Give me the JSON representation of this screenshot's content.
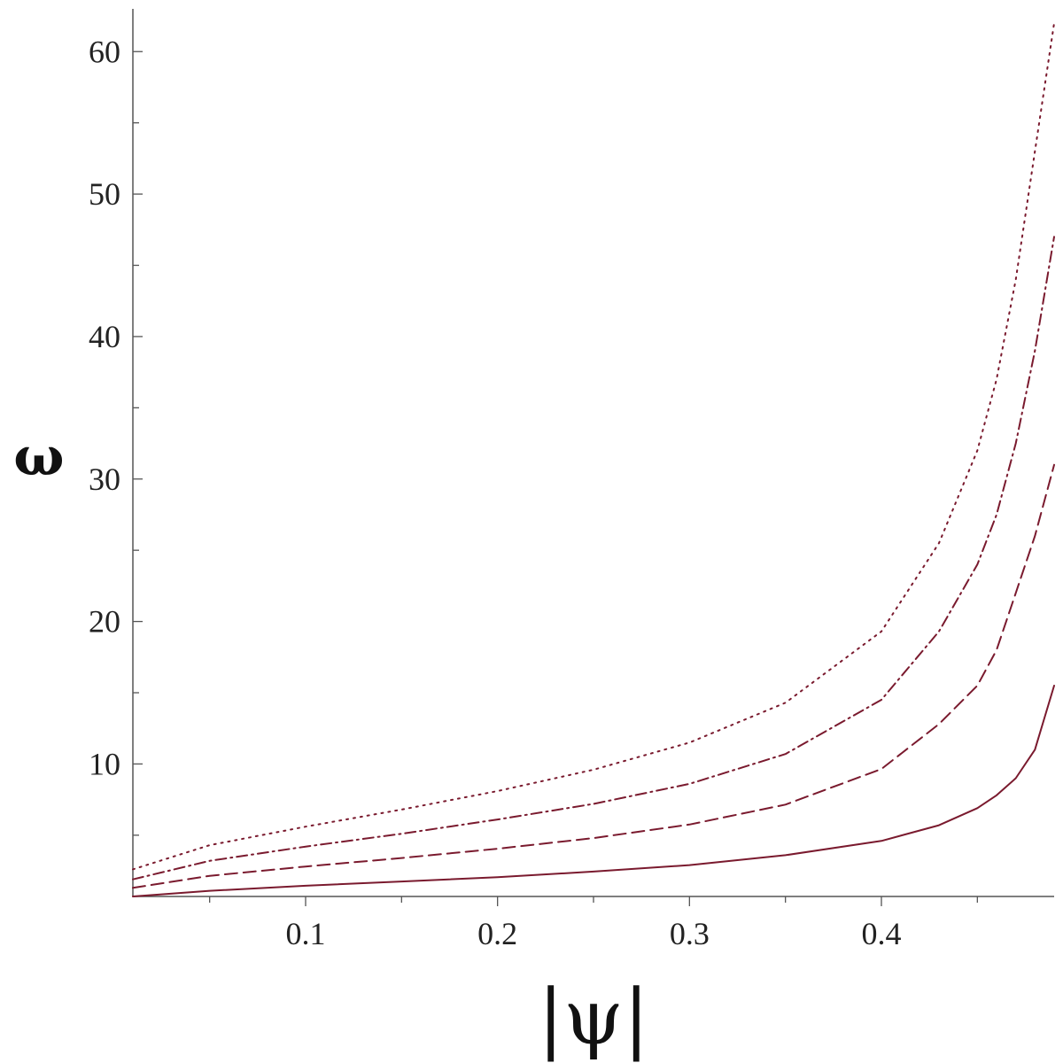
{
  "chart_data": {
    "type": "line",
    "xlabel": "|ψ|",
    "ylabel": "ω",
    "xlim": [
      0.01,
      0.49
    ],
    "ylim": [
      0.7,
      63
    ],
    "x_ticks": [
      0.1,
      0.2,
      0.3,
      0.4
    ],
    "x_tick_labels": [
      "0.1",
      "0.2",
      "0.3",
      "0.4"
    ],
    "y_ticks": [
      10,
      20,
      30,
      40,
      50,
      60
    ],
    "y_tick_labels": [
      "10",
      "20",
      "30",
      "40",
      "50",
      "60"
    ],
    "grid": false,
    "legend": "none",
    "colors": {
      "line": "#7a1a2e",
      "axis": "#555555"
    },
    "series": [
      {
        "style": "dotted",
        "points": [
          [
            0.01,
            2.6
          ],
          [
            0.05,
            4.3
          ],
          [
            0.1,
            5.6
          ],
          [
            0.15,
            6.8
          ],
          [
            0.2,
            8.1
          ],
          [
            0.25,
            9.6
          ],
          [
            0.3,
            11.5
          ],
          [
            0.35,
            14.3
          ],
          [
            0.4,
            19.3
          ],
          [
            0.43,
            25.5
          ],
          [
            0.45,
            32
          ],
          [
            0.46,
            37
          ],
          [
            0.47,
            44
          ],
          [
            0.48,
            53
          ],
          [
            0.49,
            62
          ]
        ]
      },
      {
        "style": "dashdot",
        "points": [
          [
            0.01,
            1.9
          ],
          [
            0.05,
            3.2
          ],
          [
            0.1,
            4.2
          ],
          [
            0.15,
            5.1
          ],
          [
            0.2,
            6.1
          ],
          [
            0.25,
            7.2
          ],
          [
            0.3,
            8.6
          ],
          [
            0.35,
            10.7
          ],
          [
            0.4,
            14.5
          ],
          [
            0.43,
            19.3
          ],
          [
            0.45,
            24
          ],
          [
            0.46,
            27.5
          ],
          [
            0.47,
            32.5
          ],
          [
            0.48,
            39
          ],
          [
            0.49,
            47
          ]
        ]
      },
      {
        "style": "dashed",
        "points": [
          [
            0.01,
            1.3
          ],
          [
            0.05,
            2.15
          ],
          [
            0.1,
            2.8
          ],
          [
            0.15,
            3.4
          ],
          [
            0.2,
            4.05
          ],
          [
            0.25,
            4.8
          ],
          [
            0.3,
            5.75
          ],
          [
            0.35,
            7.15
          ],
          [
            0.4,
            9.65
          ],
          [
            0.43,
            12.8
          ],
          [
            0.45,
            15.5
          ],
          [
            0.46,
            18
          ],
          [
            0.47,
            22
          ],
          [
            0.48,
            26
          ],
          [
            0.49,
            31
          ]
        ]
      },
      {
        "style": "solid",
        "points": [
          [
            0.01,
            0.7
          ],
          [
            0.05,
            1.1
          ],
          [
            0.1,
            1.45
          ],
          [
            0.15,
            1.75
          ],
          [
            0.2,
            2.05
          ],
          [
            0.25,
            2.45
          ],
          [
            0.3,
            2.9
          ],
          [
            0.35,
            3.6
          ],
          [
            0.4,
            4.6
          ],
          [
            0.43,
            5.7
          ],
          [
            0.45,
            6.9
          ],
          [
            0.46,
            7.8
          ],
          [
            0.47,
            9
          ],
          [
            0.48,
            11
          ],
          [
            0.49,
            15.5
          ]
        ]
      }
    ]
  }
}
